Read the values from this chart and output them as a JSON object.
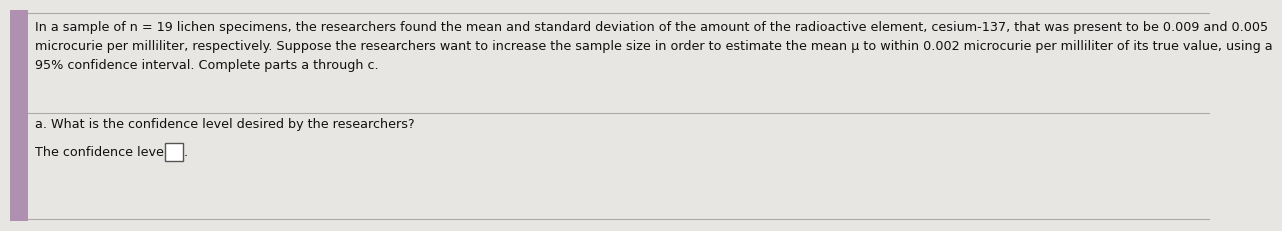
{
  "bg_color": "#c8b8c8",
  "main_bg": "#e8e6e3",
  "separator_color": "#aaaaaa",
  "text_color": "#111111",
  "left_bar_color": "#b090b0",
  "paragraph_text": "In a sample of n = 19 lichen specimens, the researchers found the mean and standard deviation of the amount of the radioactive element, cesium-137, that was present to be 0.009 and 0.005\nmicrocurie per milliliter, respectively. Suppose the researchers want to increase the sample size in order to estimate the mean μ to within 0.002 microcurie per milliliter of its true value, using a\n95% confidence interval. Complete parts a through c.",
  "question_text": "a. What is the confidence level desired by the researchers?",
  "answer_text": "The confidence level is",
  "font_size_paragraph": 9.2,
  "font_size_question": 9.2,
  "font_size_answer": 9.2,
  "left_bar_width": 0.018
}
